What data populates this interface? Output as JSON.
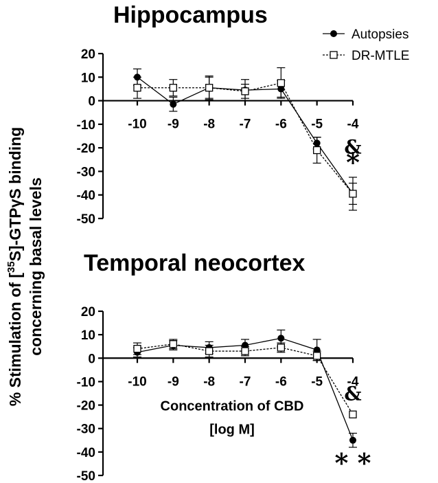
{
  "ylabel": {
    "line1": "% Stimulation of [",
    "sup": "35",
    "line1_end": "S]-GTPγS binding",
    "line2": "concerning basal levels"
  },
  "legend": {
    "position": "top-right",
    "items": [
      {
        "label": "Autopsies",
        "marker": "filled-circle",
        "line": "solid"
      },
      {
        "label": "DR-MTLE",
        "marker": "open-square",
        "line": "dashed"
      }
    ]
  },
  "chart_data": [
    {
      "type": "line",
      "title": "Hippocampus",
      "xlabel": "",
      "x": [
        -10,
        -9,
        -8,
        -7,
        -6,
        -5,
        -4
      ],
      "x_ticks": [
        "-10",
        "-9",
        "-8",
        "-7",
        "-6",
        "-5",
        "-4"
      ],
      "ylim": [
        -50,
        20
      ],
      "y_ticks": [
        "20",
        "10",
        "0",
        "-10",
        "-20",
        "-30",
        "-40",
        "-50"
      ],
      "grid": false,
      "series": [
        {
          "name": "Autopsies",
          "values": [
            10,
            -1.5,
            5.5,
            4.5,
            5,
            -18,
            -39.5
          ],
          "errors": [
            3.5,
            3,
            5,
            4.5,
            3.5,
            2.5,
            7
          ]
        },
        {
          "name": "DR-MTLE",
          "values": [
            5.5,
            5.5,
            5.5,
            4,
            7.5,
            -21,
            -39.5
          ],
          "errors": [
            4.5,
            3.5,
            4.5,
            3,
            6.5,
            5.5,
            4.5
          ]
        }
      ],
      "annotations": [
        {
          "text": "&",
          "x": -4,
          "series": "DR-MTLE",
          "where": "above"
        },
        {
          "text": "*",
          "x": -4,
          "series": "Autopsies",
          "where": "above"
        }
      ]
    },
    {
      "type": "line",
      "title": "Temporal neocortex",
      "xlabel": "Concentration of CBD",
      "xlabel_line2": "[log M]",
      "x": [
        -10,
        -9,
        -8,
        -7,
        -6,
        -5,
        -4
      ],
      "x_ticks": [
        "-10",
        "-9",
        "-8",
        "-7",
        "-6",
        "-5",
        "-4"
      ],
      "ylim": [
        -50,
        20
      ],
      "y_ticks": [
        "20",
        "10",
        "0",
        "-10",
        "-20",
        "-30",
        "-40",
        "-50"
      ],
      "grid": false,
      "series": [
        {
          "name": "Autopsies",
          "values": [
            2.5,
            5.5,
            4.5,
            5.5,
            8.5,
            3.5,
            -35
          ],
          "errors": [
            2,
            2,
            2.5,
            2.5,
            3.5,
            4.5,
            3
          ]
        },
        {
          "name": "DR-MTLE",
          "values": [
            4,
            6,
            3,
            3,
            4.5,
            1,
            -24
          ],
          "errors": [
            2.5,
            2,
            2.5,
            2,
            2,
            2,
            0
          ]
        }
      ],
      "annotations": [
        {
          "text": "&",
          "x": -4,
          "series": "DR-MTLE",
          "where": "above"
        },
        {
          "text": "* *",
          "x": -4,
          "series": "Autopsies",
          "where": "below"
        }
      ]
    }
  ]
}
